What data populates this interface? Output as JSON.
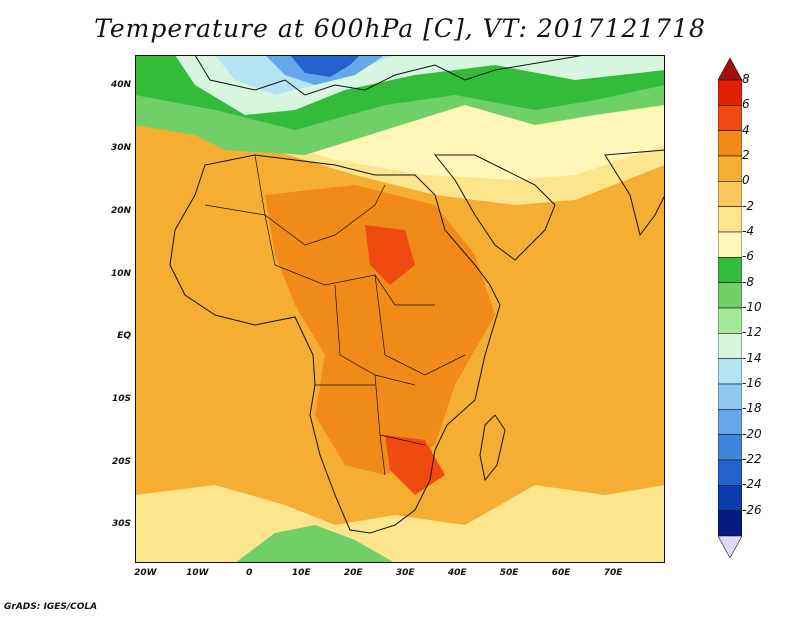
{
  "title": "Temperature at 600hPa [C], VT: 2017121718",
  "footer": "GrADS: IGES/COLA",
  "map": {
    "region": "Africa",
    "lon_range": [
      -22,
      80
    ],
    "lat_range": [
      -36,
      45
    ],
    "y_ticks": [
      {
        "label": "40N",
        "lat": 40
      },
      {
        "label": "30N",
        "lat": 30
      },
      {
        "label": "20N",
        "lat": 20
      },
      {
        "label": "10N",
        "lat": 10
      },
      {
        "label": "EQ",
        "lat": 0
      },
      {
        "label": "10S",
        "lat": -10
      },
      {
        "label": "20S",
        "lat": -20
      },
      {
        "label": "30S",
        "lat": -30
      }
    ],
    "x_ticks": [
      {
        "label": "20W",
        "lon": -20
      },
      {
        "label": "10W",
        "lon": -10
      },
      {
        "label": "0",
        "lon": 0
      },
      {
        "label": "10E",
        "lon": 10
      },
      {
        "label": "20E",
        "lon": 20
      },
      {
        "label": "30E",
        "lon": 30
      },
      {
        "label": "40E",
        "lon": 40
      },
      {
        "label": "50E",
        "lon": 50
      },
      {
        "label": "60E",
        "lon": 60
      },
      {
        "label": "70E",
        "lon": 70
      }
    ]
  },
  "colorbar": {
    "labels": [
      "8",
      "6",
      "4",
      "2",
      "0",
      "-2",
      "-4",
      "-6",
      "-8",
      "-10",
      "-12",
      "-14",
      "-16",
      "-18",
      "-20",
      "-22",
      "-24",
      "-26"
    ],
    "colors": [
      "#a01010",
      "#e02000",
      "#f04a10",
      "#f08a18",
      "#f6ae32",
      "#f9c660",
      "#fde58e",
      "#fff6b8",
      "#33bb3a",
      "#6ed066",
      "#a6e89a",
      "#d6f6e0",
      "#b4e4f4",
      "#8ec8f0",
      "#64a8ea",
      "#3e86dc",
      "#2262cc",
      "#0a3cb0",
      "#061a80",
      "#e4d8f8"
    ]
  }
}
